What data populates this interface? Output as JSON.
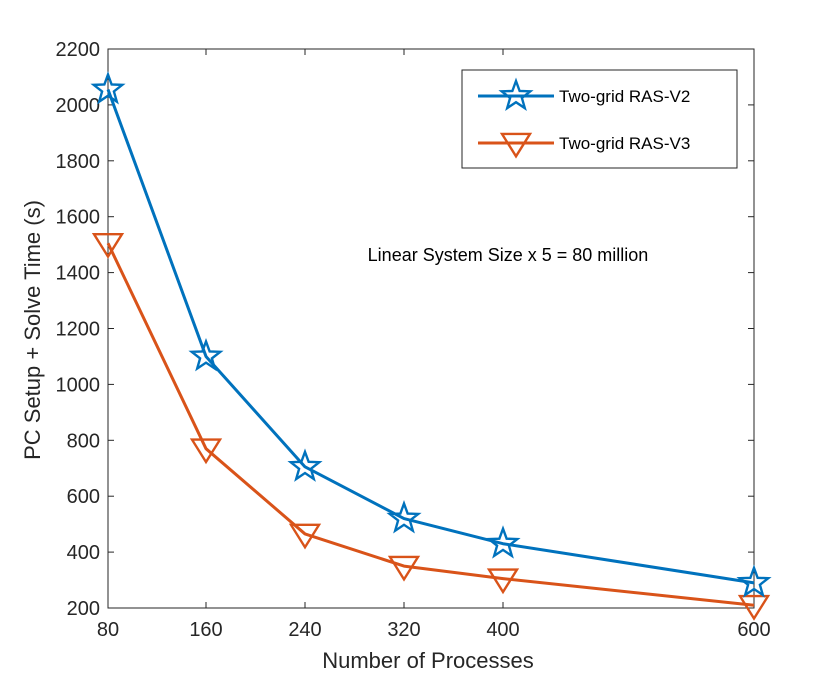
{
  "chart_data": {
    "type": "line",
    "title": "",
    "xlabel": "Number of Processes",
    "ylabel": "PC Setup + Solve Time (s)",
    "x_ticks": [
      "80",
      "160",
      "240",
      "320",
      "400",
      "600"
    ],
    "y_ticks": [
      "200",
      "400",
      "600",
      "800",
      "1000",
      "1200",
      "1400",
      "1600",
      "1800",
      "2000",
      "2200"
    ],
    "ylim": [
      200,
      2200
    ],
    "grid": false,
    "legend_position": "top-right",
    "annotation": "Linear System Size x 5 = 80 million",
    "series": [
      {
        "name": "Two-grid RAS-V2",
        "color": "#0072bd",
        "marker": "star-icon",
        "values": [
          2055,
          1100,
          705,
          520,
          430,
          290
        ]
      },
      {
        "name": "Two-grid RAS-V3",
        "color": "#d95319",
        "marker": "down-triangle-icon",
        "values": [
          1505,
          770,
          465,
          350,
          305,
          210
        ]
      }
    ]
  }
}
